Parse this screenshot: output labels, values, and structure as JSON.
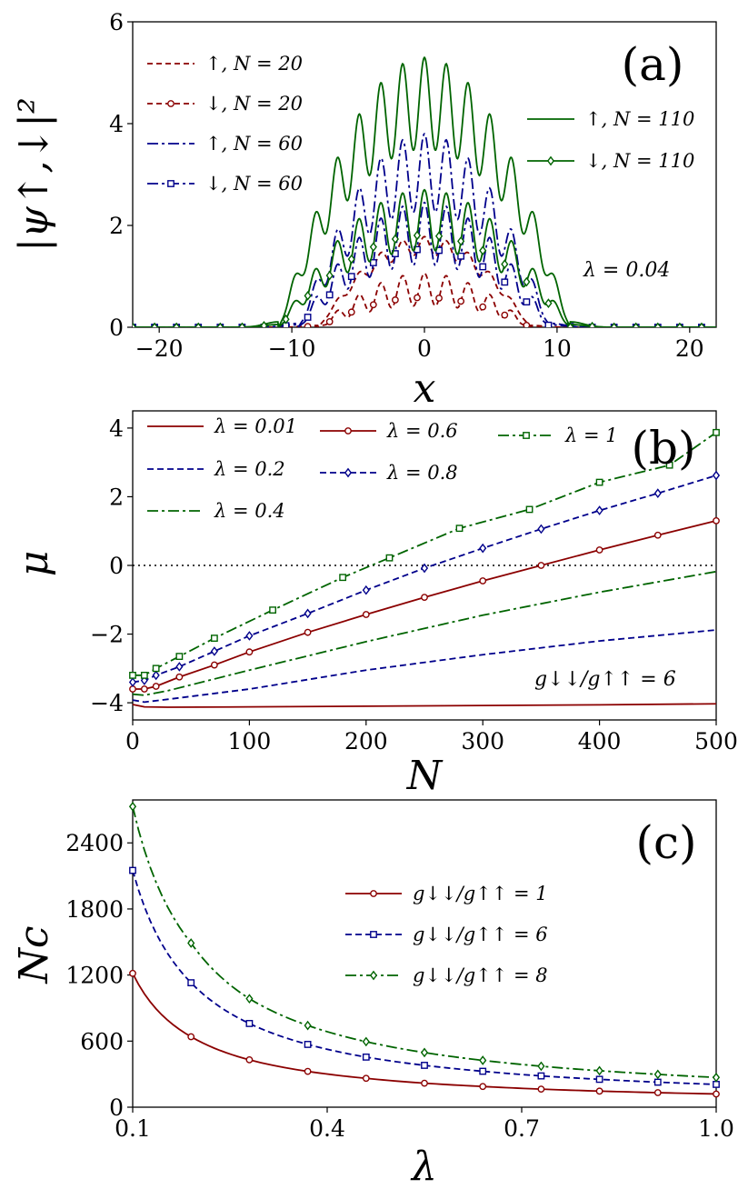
{
  "colors": {
    "red": "#8b0000",
    "blue": "#00008b",
    "green": "#006400"
  },
  "chart_data": [
    {
      "panel": "(a)",
      "type": "line",
      "xlabel": "x",
      "ylabel": "|ψ↑,↓|²",
      "xlim": [
        -22,
        22
      ],
      "ylim": [
        0,
        6
      ],
      "xticks": [
        -20,
        -10,
        0,
        10,
        20
      ],
      "yticks": [
        0,
        2,
        4,
        6
      ],
      "annotation": "λ = 0.04",
      "legend_left": [
        "↑, N = 20",
        "↓, N = 20",
        "↑, N = 60",
        "↓, N = 60"
      ],
      "legend_right": [
        "↑, N = 110",
        "↓, N = 110"
      ],
      "series": [
        {
          "name": "↑, N = 20",
          "color": "red",
          "dash": "6,4",
          "marker": "",
          "peak": 1.78,
          "R": 8.0,
          "mod": 0.1
        },
        {
          "name": "↓, N = 20",
          "color": "red",
          "dash": "6,4",
          "marker": "circle",
          "peak": 1.06,
          "R": 8.0,
          "mod": 0.3
        },
        {
          "name": "↑, N = 60",
          "color": "blue",
          "dash": "12,4,3,4",
          "marker": "",
          "peak": 3.8,
          "R": 9.5,
          "mod": 0.2
        },
        {
          "name": "↓, N = 60",
          "color": "blue",
          "dash": "12,4,3,4",
          "marker": "square",
          "peak": 2.45,
          "R": 9.5,
          "mod": 0.25
        },
        {
          "name": "↑, N = 110",
          "color": "green",
          "dash": "",
          "marker": "",
          "peak": 5.3,
          "R": 11.0,
          "mod": 0.17
        },
        {
          "name": "↓, N = 110",
          "color": "green",
          "dash": "",
          "marker": "diamond",
          "peak": 2.7,
          "R": 11.0,
          "mod": 0.22
        }
      ]
    },
    {
      "panel": "(b)",
      "type": "line",
      "xlabel": "N",
      "ylabel": "μ",
      "xlim": [
        0,
        500
      ],
      "ylim": [
        -4.5,
        4.5
      ],
      "xticks": [
        0,
        100,
        200,
        300,
        400,
        500
      ],
      "yticks": [
        -4,
        -2,
        0,
        2,
        4
      ],
      "annotation": "g↓↓/g↑↑ = 6",
      "legend": [
        "λ = 0.01",
        "λ = 0.6",
        "λ = 1",
        "λ = 0.2",
        "λ = 0.8",
        "λ = 0.4"
      ],
      "series": [
        {
          "name": "λ = 0.01",
          "color": "red",
          "dash": "",
          "marker": "",
          "x": [
            0,
            10,
            30,
            100,
            200,
            300,
            400,
            500
          ],
          "y": [
            -4.05,
            -4.12,
            -4.13,
            -4.12,
            -4.1,
            -4.08,
            -4.06,
            -4.03
          ]
        },
        {
          "name": "λ = 0.2",
          "color": "blue",
          "dash": "7,4",
          "marker": "",
          "x": [
            0,
            10,
            30,
            100,
            200,
            300,
            400,
            500
          ],
          "y": [
            -3.92,
            -3.98,
            -3.9,
            -3.6,
            -3.05,
            -2.6,
            -2.2,
            -1.88
          ]
        },
        {
          "name": "λ = 0.4",
          "color": "green",
          "dash": "12,4,3,4",
          "marker": "",
          "x": [
            0,
            10,
            30,
            100,
            200,
            300,
            400,
            500
          ],
          "y": [
            -3.75,
            -3.78,
            -3.65,
            -3.05,
            -2.22,
            -1.45,
            -0.78,
            -0.18
          ]
        },
        {
          "name": "λ = 0.6",
          "color": "red",
          "dash": "",
          "marker": "circle",
          "x": [
            0,
            10,
            20,
            40,
            70,
            100,
            150,
            200,
            250,
            300,
            350,
            400,
            450,
            500
          ],
          "y": [
            -3.6,
            -3.6,
            -3.52,
            -3.25,
            -2.9,
            -2.52,
            -1.95,
            -1.43,
            -0.93,
            -0.45,
            0.0,
            0.45,
            0.88,
            1.3
          ]
        },
        {
          "name": "λ = 0.8",
          "color": "blue",
          "dash": "7,4",
          "marker": "diamond",
          "x": [
            0,
            10,
            20,
            40,
            70,
            100,
            150,
            200,
            250,
            300,
            350,
            400,
            450,
            500
          ],
          "y": [
            -3.4,
            -3.35,
            -3.2,
            -2.95,
            -2.5,
            -2.05,
            -1.4,
            -0.72,
            -0.08,
            0.5,
            1.06,
            1.6,
            2.1,
            2.62
          ]
        },
        {
          "name": "λ = 1",
          "color": "green",
          "dash": "12,4,3,4",
          "marker": "square",
          "x": [
            0,
            10,
            20,
            40,
            70,
            120,
            180,
            220,
            280,
            340,
            400,
            460,
            500
          ],
          "y": [
            -3.2,
            -3.2,
            -3.0,
            -2.65,
            -2.12,
            -1.3,
            -0.35,
            0.22,
            1.08,
            1.63,
            2.42,
            2.92,
            3.87
          ]
        }
      ]
    },
    {
      "panel": "(c)",
      "type": "line",
      "xlabel": "λ",
      "ylabel": "Nc",
      "xlim": [
        0.1,
        1.0
      ],
      "ylim": [
        0,
        2790
      ],
      "xticks": [
        0.1,
        0.4,
        0.7,
        1.0
      ],
      "xtick_labels": [
        "0.1",
        "0.4",
        "0.7",
        "1.0"
      ],
      "yticks": [
        0,
        600,
        1200,
        1800,
        2400
      ],
      "legend": [
        "g↓↓/g↑↑ = 1",
        "g↓↓/g↑↑ = 6",
        "g↓↓/g↑↑ = 8"
      ],
      "series": [
        {
          "name": "g↓↓/g↑↑ = 1",
          "color": "red",
          "dash": "",
          "marker": "circle",
          "x": [
            0.1,
            0.19,
            0.28,
            0.37,
            0.46,
            0.55,
            0.64,
            0.73,
            0.82,
            0.91,
            1.0
          ],
          "y": [
            1215,
            640,
            430,
            325,
            262,
            218,
            188,
            164,
            146,
            132,
            120
          ]
        },
        {
          "name": "g↓↓/g↑↑ = 6",
          "color": "blue",
          "dash": "7,4",
          "marker": "square",
          "x": [
            0.1,
            0.19,
            0.28,
            0.37,
            0.46,
            0.55,
            0.64,
            0.73,
            0.82,
            0.91,
            1.0
          ],
          "y": [
            2150,
            1130,
            760,
            570,
            455,
            380,
            326,
            284,
            253,
            227,
            207
          ]
        },
        {
          "name": "g↓↓/g↑↑ = 8",
          "color": "green",
          "dash": "12,4,3,4",
          "marker": "diamond",
          "x": [
            0.1,
            0.19,
            0.28,
            0.37,
            0.46,
            0.55,
            0.64,
            0.73,
            0.82,
            0.91,
            1.0
          ],
          "y": [
            2730,
            1490,
            985,
            742,
            595,
            496,
            425,
            372,
            331,
            298,
            270
          ]
        }
      ]
    }
  ]
}
